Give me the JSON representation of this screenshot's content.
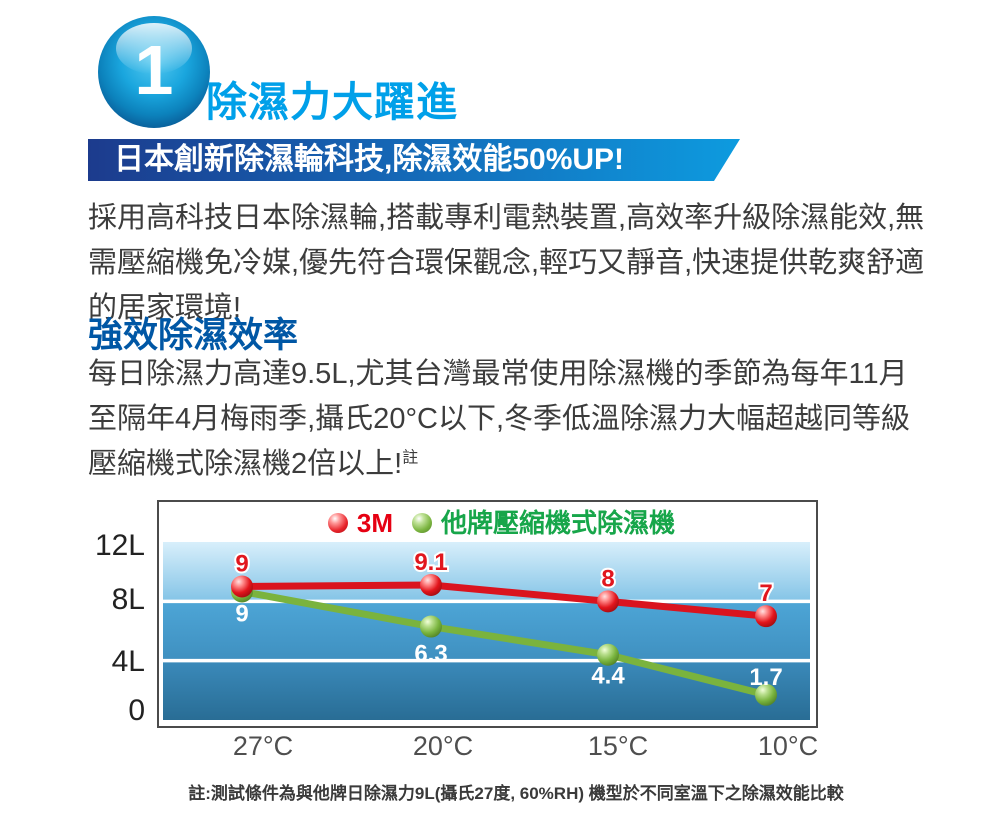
{
  "colors": {
    "title_blue": "#00a0e9",
    "heading_blue": "#0057a5",
    "banner_gradient_start": "#1c3b8d",
    "banner_gradient_end": "#0d9bdf",
    "series_red": "#da141f",
    "series_green": "#7ab33e",
    "legend_red_text": "#e60012",
    "legend_green_text": "#17a64a",
    "body_text": "#3c3c3c",
    "axis_text": "#4f4f4f"
  },
  "badge": {
    "number": "1"
  },
  "header": {
    "title": "除濕力大躍進",
    "banner": "日本創新除濕輪科技,除濕效能50%UP!"
  },
  "intro": {
    "text": "採用高科技日本除濕輪,搭載專利電熱裝置,高效率升級除濕能效,無需壓縮機免冷媒,優先符合環保觀念,輕巧又靜音,快速提供乾爽舒適的居家環境!"
  },
  "section": {
    "heading": "強效除濕效率",
    "body": "每日除濕力高達9.5L,尤其台灣最常使用除濕機的季節為每年11月至隔年4月梅雨季,攝氏20°C以下,冬季低溫除濕力大幅超越同等級壓縮機式除濕機2倍以上!",
    "body_superscript": "註"
  },
  "footnote": {
    "text": "註:測試條件為與他牌日除濕力9L(攝氏27度, 60%RH) 機型於不同室溫下之除濕效能比較"
  },
  "chart_data": {
    "type": "line",
    "title": "",
    "xlabel": "",
    "ylabel": "",
    "categories": [
      "27°C",
      "20°C",
      "15°C",
      "10°C"
    ],
    "series": [
      {
        "name": "3M",
        "color": "#da141f",
        "values": [
          9,
          9.1,
          8,
          7
        ],
        "labels": [
          "9",
          "9.1",
          "8",
          "7"
        ]
      },
      {
        "name": "他牌壓縮機式除濕機",
        "color": "#7ab33e",
        "values": [
          9,
          6.3,
          4.4,
          1.7
        ],
        "labels": [
          "9",
          "6.3",
          "4.4",
          "1.7"
        ]
      }
    ],
    "ylim": [
      0,
      12
    ],
    "yticks": [
      12,
      8,
      4,
      0
    ],
    "ytick_labels": [
      "12L",
      "8L",
      "4L",
      "0"
    ],
    "legend_position": "top-center",
    "grid": "horizontal-white-lines"
  }
}
